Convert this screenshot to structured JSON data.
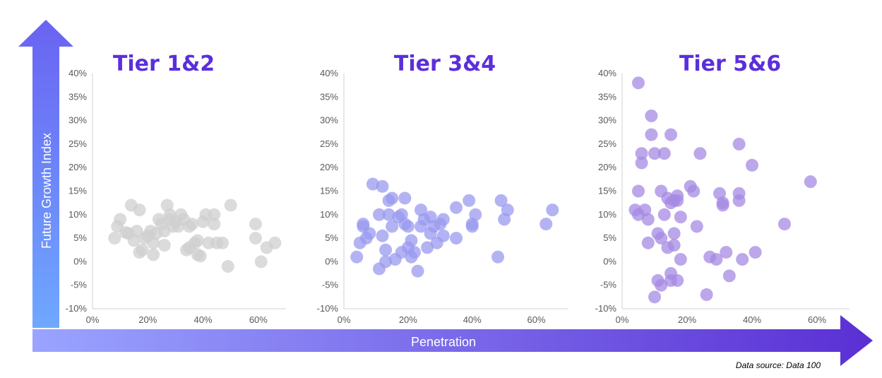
{
  "colors": {
    "tier12": "#cfcfcf",
    "tier34": "#9a9af0",
    "tier56": "#a689e3",
    "title": "#5b2fdc",
    "arrow_light": "#8aa7ff",
    "arrow_dark": "#5a2fd4"
  },
  "axes": {
    "y_label": "Future Growth Index",
    "x_label": "Penetration"
  },
  "source_note": "Data source: Data 100",
  "chart_data": [
    {
      "type": "scatter",
      "title": "Tier 1&2",
      "xlim": [
        0,
        0.7
      ],
      "ylim": [
        -0.1,
        0.4
      ],
      "x_ticks": [
        0,
        0.2,
        0.4,
        0.6
      ],
      "x_tick_labels": [
        "0%",
        "20%",
        "40%",
        "60%"
      ],
      "y_ticks": [
        -0.1,
        -0.05,
        0,
        0.05,
        0.1,
        0.15,
        0.2,
        0.25,
        0.3,
        0.35,
        0.4
      ],
      "y_tick_labels": [
        "-10%",
        "-5%",
        "0%",
        "5%",
        "10%",
        "15%",
        "20%",
        "25%",
        "30%",
        "35%",
        "40%"
      ],
      "grid": false,
      "points": [
        [
          0.08,
          0.05
        ],
        [
          0.09,
          0.075
        ],
        [
          0.1,
          0.09
        ],
        [
          0.12,
          0.062
        ],
        [
          0.13,
          0.06
        ],
        [
          0.14,
          0.12
        ],
        [
          0.15,
          0.045
        ],
        [
          0.16,
          0.065
        ],
        [
          0.17,
          0.02
        ],
        [
          0.17,
          0.11
        ],
        [
          0.18,
          0.025
        ],
        [
          0.19,
          0.05
        ],
        [
          0.2,
          0.055
        ],
        [
          0.21,
          0.065
        ],
        [
          0.22,
          0.04
        ],
        [
          0.22,
          0.015
        ],
        [
          0.23,
          0.06
        ],
        [
          0.24,
          0.09
        ],
        [
          0.25,
          0.08
        ],
        [
          0.26,
          0.035
        ],
        [
          0.26,
          0.065
        ],
        [
          0.27,
          0.12
        ],
        [
          0.28,
          0.1
        ],
        [
          0.28,
          0.09
        ],
        [
          0.29,
          0.075
        ],
        [
          0.3,
          0.085
        ],
        [
          0.31,
          0.075
        ],
        [
          0.32,
          0.1
        ],
        [
          0.33,
          0.09
        ],
        [
          0.34,
          0.025
        ],
        [
          0.35,
          0.03
        ],
        [
          0.35,
          0.075
        ],
        [
          0.36,
          0.08
        ],
        [
          0.37,
          0.04
        ],
        [
          0.38,
          0.015
        ],
        [
          0.38,
          0.045
        ],
        [
          0.39,
          0.012
        ],
        [
          0.4,
          0.085
        ],
        [
          0.41,
          0.1
        ],
        [
          0.42,
          0.04
        ],
        [
          0.44,
          0.08
        ],
        [
          0.44,
          0.1
        ],
        [
          0.45,
          0.04
        ],
        [
          0.47,
          0.04
        ],
        [
          0.49,
          -0.01
        ],
        [
          0.5,
          0.12
        ],
        [
          0.59,
          0.08
        ],
        [
          0.59,
          0.05
        ],
        [
          0.61,
          0.0
        ],
        [
          0.63,
          0.03
        ],
        [
          0.66,
          0.04
        ]
      ]
    },
    {
      "type": "scatter",
      "title": "Tier 3&4",
      "xlim": [
        0,
        0.7
      ],
      "ylim": [
        -0.1,
        0.4
      ],
      "x_ticks": [
        0,
        0.2,
        0.4,
        0.6
      ],
      "x_tick_labels": [
        "0%",
        "20%",
        "40%",
        "60%"
      ],
      "y_ticks": [
        -0.1,
        -0.05,
        0,
        0.05,
        0.1,
        0.15,
        0.2,
        0.25,
        0.3,
        0.35,
        0.4
      ],
      "y_tick_labels": [
        "-10%",
        "-5%",
        "0%",
        "5%",
        "10%",
        "15%",
        "20%",
        "25%",
        "30%",
        "35%",
        "40%"
      ],
      "grid": false,
      "points": [
        [
          0.04,
          0.01
        ],
        [
          0.05,
          0.04
        ],
        [
          0.06,
          0.075
        ],
        [
          0.06,
          0.08
        ],
        [
          0.07,
          0.05
        ],
        [
          0.08,
          0.06
        ],
        [
          0.09,
          0.165
        ],
        [
          0.11,
          0.1
        ],
        [
          0.11,
          -0.015
        ],
        [
          0.12,
          0.055
        ],
        [
          0.12,
          0.16
        ],
        [
          0.13,
          0.025
        ],
        [
          0.13,
          0.0
        ],
        [
          0.14,
          0.1
        ],
        [
          0.14,
          0.13
        ],
        [
          0.15,
          0.075
        ],
        [
          0.15,
          0.135
        ],
        [
          0.16,
          0.005
        ],
        [
          0.17,
          0.095
        ],
        [
          0.18,
          0.1
        ],
        [
          0.18,
          0.02
        ],
        [
          0.19,
          0.08
        ],
        [
          0.19,
          0.135
        ],
        [
          0.2,
          0.075
        ],
        [
          0.2,
          0.03
        ],
        [
          0.21,
          0.045
        ],
        [
          0.21,
          0.01
        ],
        [
          0.22,
          0.02
        ],
        [
          0.23,
          -0.02
        ],
        [
          0.24,
          0.11
        ],
        [
          0.24,
          0.075
        ],
        [
          0.25,
          0.09
        ],
        [
          0.26,
          0.03
        ],
        [
          0.27,
          0.06
        ],
        [
          0.27,
          0.095
        ],
        [
          0.28,
          0.075
        ],
        [
          0.29,
          0.04
        ],
        [
          0.3,
          0.08
        ],
        [
          0.31,
          0.055
        ],
        [
          0.31,
          0.09
        ],
        [
          0.35,
          0.05
        ],
        [
          0.35,
          0.115
        ],
        [
          0.39,
          0.13
        ],
        [
          0.4,
          0.08
        ],
        [
          0.4,
          0.075
        ],
        [
          0.41,
          0.1
        ],
        [
          0.48,
          0.01
        ],
        [
          0.49,
          0.13
        ],
        [
          0.5,
          0.09
        ],
        [
          0.51,
          0.11
        ],
        [
          0.63,
          0.08
        ],
        [
          0.65,
          0.11
        ]
      ]
    },
    {
      "type": "scatter",
      "title": "Tier 5&6",
      "xlim": [
        0,
        0.7
      ],
      "ylim": [
        -0.1,
        0.4
      ],
      "x_ticks": [
        0,
        0.2,
        0.4,
        0.6
      ],
      "x_tick_labels": [
        "0%",
        "20%",
        "40%",
        "60%"
      ],
      "y_ticks": [
        -0.1,
        -0.05,
        0,
        0.05,
        0.1,
        0.15,
        0.2,
        0.25,
        0.3,
        0.35,
        0.4
      ],
      "y_tick_labels": [
        "-10%",
        "-5%",
        "0%",
        "5%",
        "10%",
        "15%",
        "20%",
        "25%",
        "30%",
        "35%",
        "40%"
      ],
      "grid": false,
      "points": [
        [
          0.04,
          0.11
        ],
        [
          0.05,
          0.38
        ],
        [
          0.05,
          0.15
        ],
        [
          0.05,
          0.1
        ],
        [
          0.06,
          0.23
        ],
        [
          0.06,
          0.21
        ],
        [
          0.07,
          0.11
        ],
        [
          0.08,
          0.04
        ],
        [
          0.08,
          0.09
        ],
        [
          0.09,
          0.31
        ],
        [
          0.09,
          0.27
        ],
        [
          0.1,
          0.23
        ],
        [
          0.1,
          -0.075
        ],
        [
          0.11,
          -0.04
        ],
        [
          0.11,
          0.06
        ],
        [
          0.12,
          0.15
        ],
        [
          0.12,
          0.05
        ],
        [
          0.12,
          -0.05
        ],
        [
          0.13,
          0.1
        ],
        [
          0.13,
          0.23
        ],
        [
          0.14,
          0.03
        ],
        [
          0.14,
          0.135
        ],
        [
          0.15,
          0.27
        ],
        [
          0.15,
          0.125
        ],
        [
          0.15,
          -0.025
        ],
        [
          0.15,
          -0.04
        ],
        [
          0.16,
          0.06
        ],
        [
          0.16,
          0.035
        ],
        [
          0.16,
          0.13
        ],
        [
          0.17,
          0.13
        ],
        [
          0.17,
          -0.04
        ],
        [
          0.17,
          0.14
        ],
        [
          0.18,
          0.095
        ],
        [
          0.18,
          0.005
        ],
        [
          0.21,
          0.16
        ],
        [
          0.22,
          0.15
        ],
        [
          0.23,
          0.075
        ],
        [
          0.24,
          0.23
        ],
        [
          0.26,
          -0.07
        ],
        [
          0.27,
          0.01
        ],
        [
          0.29,
          0.005
        ],
        [
          0.3,
          0.145
        ],
        [
          0.31,
          0.125
        ],
        [
          0.31,
          0.12
        ],
        [
          0.32,
          0.02
        ],
        [
          0.33,
          -0.03
        ],
        [
          0.36,
          0.25
        ],
        [
          0.36,
          0.145
        ],
        [
          0.36,
          0.13
        ],
        [
          0.37,
          0.005
        ],
        [
          0.4,
          0.205
        ],
        [
          0.41,
          0.02
        ],
        [
          0.5,
          0.08
        ],
        [
          0.58,
          0.17
        ]
      ]
    }
  ]
}
